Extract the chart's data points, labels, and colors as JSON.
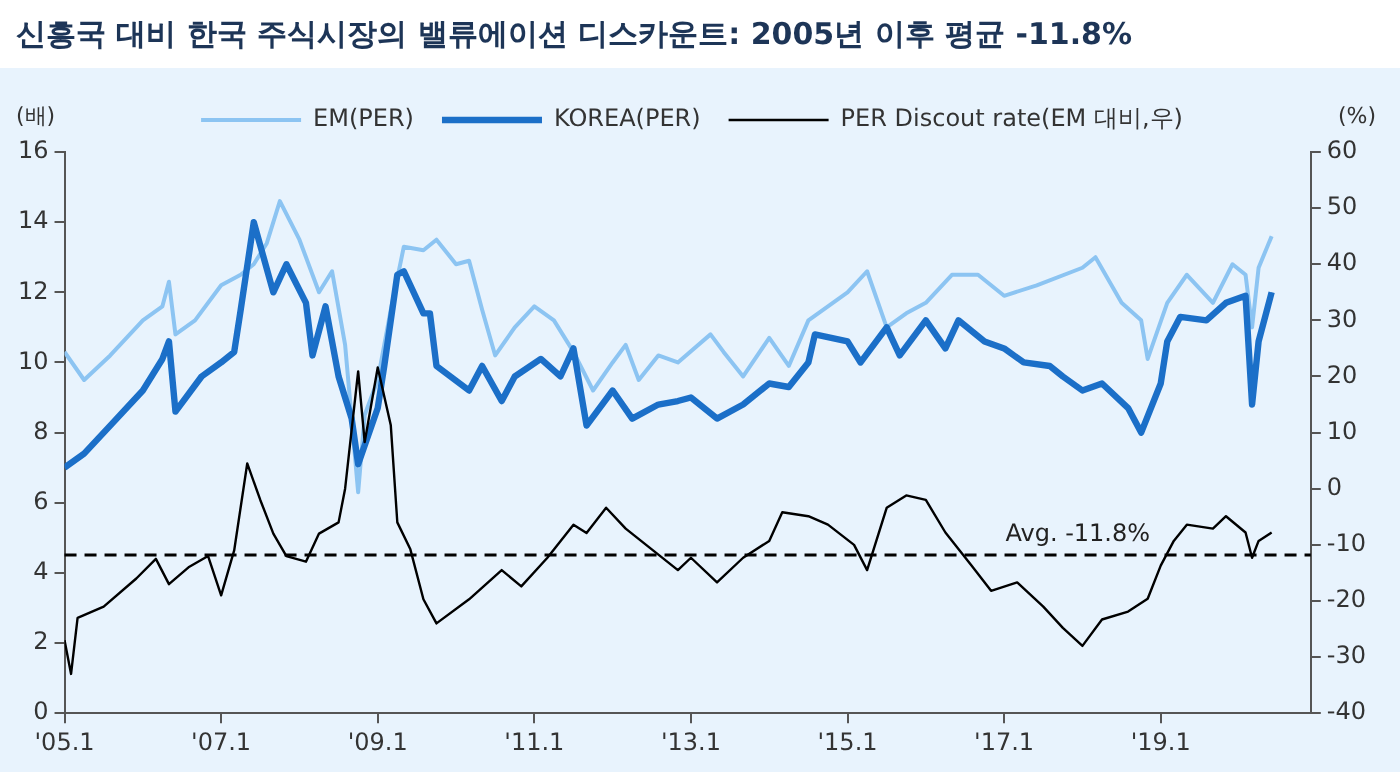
{
  "chart_data": {
    "type": "line",
    "title": "신흥국 대비 한국 주식시장의 밸류에이션 디스카운트: 2005년 이후 평균 -11.8%",
    "ylabel": "(배)",
    "y2label": "(%)",
    "xlim": [
      "2005-01",
      "2020-12"
    ],
    "xticks": [
      {
        "value": "2005-01",
        "label": "'05.1"
      },
      {
        "value": "2007-01",
        "label": "'07.1"
      },
      {
        "value": "2009-01",
        "label": "'09.1"
      },
      {
        "value": "2011-01",
        "label": "'11.1"
      },
      {
        "value": "2013-01",
        "label": "'13.1"
      },
      {
        "value": "2015-01",
        "label": "'15.1"
      },
      {
        "value": "2017-01",
        "label": "'17.1"
      },
      {
        "value": "2019-01",
        "label": "'19.1"
      }
    ],
    "ylim": [
      0,
      16
    ],
    "yticks": [
      0,
      2,
      4,
      6,
      8,
      10,
      12,
      14,
      16
    ],
    "y2lim": [
      -40,
      60
    ],
    "y2ticks": [
      -40,
      -30,
      -20,
      -10,
      0,
      10,
      20,
      30,
      40,
      50,
      60
    ],
    "grid": false,
    "legend": "top",
    "marker": "none",
    "ref_lines": [
      {
        "axis": "y2",
        "value": -11.8,
        "label": "Avg. -11.8%",
        "color": "#000000",
        "line_style": "dashed"
      }
    ],
    "series": [
      {
        "name": "EM(PER)",
        "color": "#8cc4f2",
        "x": [
          "2005-01",
          "2005-04",
          "2005-08",
          "2006-01",
          "2006-04",
          "2006-05",
          "2006-06",
          "2006-09",
          "2007-01",
          "2007-04",
          "2007-06",
          "2007-08",
          "2007-10",
          "2008-01",
          "2008-04",
          "2008-06",
          "2008-08",
          "2008-10",
          "2008-11",
          "2009-01",
          "2009-03",
          "2009-05",
          "2009-08",
          "2009-10",
          "2010-01",
          "2010-03",
          "2010-05",
          "2010-07",
          "2010-10",
          "2011-01",
          "2011-04",
          "2011-07",
          "2011-10",
          "2012-01",
          "2012-03",
          "2012-05",
          "2012-08",
          "2012-11",
          "2013-04",
          "2013-06",
          "2013-09",
          "2014-01",
          "2014-04",
          "2014-07",
          "2015-01",
          "2015-04",
          "2015-07",
          "2015-10",
          "2016-01",
          "2016-05",
          "2016-09",
          "2017-01",
          "2017-06",
          "2018-01",
          "2018-03",
          "2018-07",
          "2018-10",
          "2018-11",
          "2019-02",
          "2019-05",
          "2019-09",
          "2019-12",
          "2020-02",
          "2020-03",
          "2020-04",
          "2020-06"
        ],
        "values": [
          10.3,
          9.5,
          10.2,
          11.2,
          11.6,
          12.3,
          10.8,
          11.2,
          12.2,
          12.5,
          12.8,
          13.4,
          14.6,
          13.5,
          12.0,
          12.6,
          10.5,
          6.3,
          8.5,
          9.5,
          11.5,
          13.3,
          13.2,
          13.5,
          12.8,
          12.9,
          11.5,
          10.2,
          11.0,
          11.6,
          11.2,
          10.3,
          9.2,
          10.0,
          10.5,
          9.5,
          10.2,
          10.0,
          10.8,
          10.3,
          9.6,
          10.7,
          9.9,
          11.2,
          12.0,
          12.6,
          11.0,
          11.4,
          11.7,
          12.5,
          12.5,
          11.9,
          12.2,
          12.7,
          13.0,
          11.7,
          11.2,
          10.1,
          11.7,
          12.5,
          11.7,
          12.8,
          12.5,
          11.0,
          12.7,
          13.6
        ]
      },
      {
        "name": "KOREA(PER)",
        "color": "#1b6fc8",
        "x": [
          "2005-01",
          "2005-04",
          "2005-08",
          "2006-01",
          "2006-04",
          "2006-05",
          "2006-06",
          "2006-10",
          "2007-01",
          "2007-03",
          "2007-04",
          "2007-06",
          "2007-09",
          "2007-11",
          "2008-02",
          "2008-03",
          "2008-05",
          "2008-07",
          "2008-09",
          "2008-10",
          "2009-01",
          "2009-02",
          "2009-04",
          "2009-05",
          "2009-08",
          "2009-09",
          "2009-10",
          "2010-03",
          "2010-05",
          "2010-08",
          "2010-10",
          "2011-02",
          "2011-05",
          "2011-07",
          "2011-09",
          "2012-01",
          "2012-04",
          "2012-08",
          "2012-11",
          "2013-01",
          "2013-05",
          "2013-09",
          "2014-01",
          "2014-04",
          "2014-07",
          "2014-08",
          "2015-01",
          "2015-03",
          "2015-07",
          "2015-09",
          "2016-01",
          "2016-04",
          "2016-06",
          "2016-10",
          "2017-01",
          "2017-04",
          "2017-08",
          "2017-10",
          "2018-01",
          "2018-04",
          "2018-08",
          "2018-10",
          "2019-01",
          "2019-02",
          "2019-04",
          "2019-08",
          "2019-11",
          "2020-02",
          "2020-03",
          "2020-04",
          "2020-06"
        ],
        "values": [
          7.0,
          7.4,
          8.2,
          9.2,
          10.1,
          10.6,
          8.6,
          9.6,
          10.0,
          10.3,
          11.5,
          14.0,
          12.0,
          12.8,
          11.7,
          10.2,
          11.6,
          9.6,
          8.4,
          7.1,
          8.7,
          9.9,
          12.5,
          12.6,
          11.4,
          11.4,
          9.9,
          9.2,
          9.9,
          8.9,
          9.6,
          10.1,
          9.6,
          10.4,
          8.2,
          9.2,
          8.4,
          8.8,
          8.9,
          9.0,
          8.4,
          8.8,
          9.4,
          9.3,
          10.0,
          10.8,
          10.6,
          10.0,
          11.0,
          10.2,
          11.2,
          10.4,
          11.2,
          10.6,
          10.4,
          10.0,
          9.9,
          9.6,
          9.2,
          9.4,
          8.7,
          8.0,
          9.4,
          10.6,
          11.3,
          11.2,
          11.7,
          11.9,
          8.8,
          10.6,
          12.0
        ]
      },
      {
        "name": "PER Discout rate(EM 대비,우)",
        "color": "#000000",
        "axis": "y2",
        "x": [
          "2005-01",
          "2005-02",
          "2005-03",
          "2005-07",
          "2005-12",
          "2006-03",
          "2006-05",
          "2006-08",
          "2006-11",
          "2007-01",
          "2007-03",
          "2007-05",
          "2007-07",
          "2007-09",
          "2007-11",
          "2008-02",
          "2008-04",
          "2008-07",
          "2008-08",
          "2008-10",
          "2008-11",
          "2009-01",
          "2009-03",
          "2009-04",
          "2009-06",
          "2009-08",
          "2009-10",
          "2010-03",
          "2010-08",
          "2010-11",
          "2011-03",
          "2011-07",
          "2011-09",
          "2011-12",
          "2012-03",
          "2012-07",
          "2012-11",
          "2013-01",
          "2013-05",
          "2013-09",
          "2014-01",
          "2014-03",
          "2014-07",
          "2014-10",
          "2015-02",
          "2015-04",
          "2015-07",
          "2015-10",
          "2016-01",
          "2016-04",
          "2016-08",
          "2016-11",
          "2017-03",
          "2017-07",
          "2017-10",
          "2018-01",
          "2018-04",
          "2018-08",
          "2018-11",
          "2019-01",
          "2019-03",
          "2019-05",
          "2019-09",
          "2019-11",
          "2020-02",
          "2020-03",
          "2020-04",
          "2020-06"
        ],
        "values": [
          -27,
          -33,
          -23,
          -21,
          -16,
          -12.5,
          -17,
          -14,
          -12,
          -19,
          -11,
          4.5,
          -2,
          -8,
          -12,
          -13,
          -8,
          -6,
          0,
          20.9,
          8.3,
          21.6,
          11.3,
          -6,
          -10.8,
          -19.7,
          -24,
          -19.7,
          -14.5,
          -17.4,
          -12.3,
          -6.4,
          -7.9,
          -3.4,
          -7.1,
          -10.8,
          -14.5,
          -12.3,
          -16.7,
          -12.3,
          -9.3,
          -4.2,
          -4.9,
          -6.4,
          -10,
          -14.5,
          -3.4,
          -1.2,
          -2,
          -7.8,
          -13.7,
          -18.2,
          -16.7,
          -21,
          -24.8,
          -28,
          -23.3,
          -21.9,
          -19.6,
          -13.7,
          -9.3,
          -6.4,
          -7.1,
          -4.9,
          -7.8,
          -12.3,
          -9.3,
          -7.8
        ]
      }
    ]
  }
}
